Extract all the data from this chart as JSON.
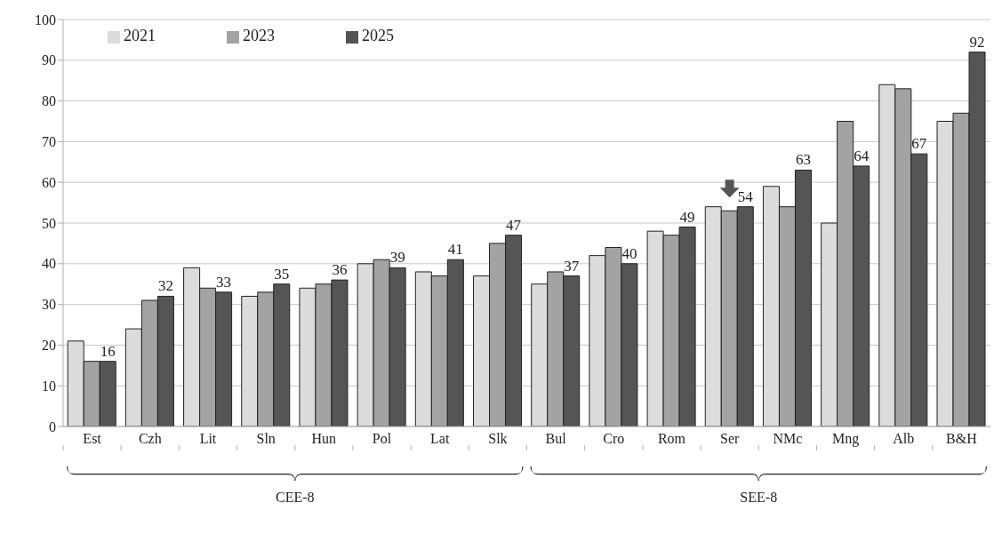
{
  "chart_data": {
    "type": "bar",
    "categories": [
      "Est",
      "Czh",
      "Lit",
      "Sln",
      "Hun",
      "Pol",
      "Lat",
      "Slk",
      "Bul",
      "Cro",
      "Rom",
      "Ser",
      "NMc",
      "Mng",
      "Alb",
      "B&H"
    ],
    "series": [
      {
        "name": "2021",
        "color": "#dcdcde",
        "values": [
          21,
          24,
          39,
          32,
          34,
          40,
          38,
          37,
          35,
          42,
          48,
          54,
          59,
          50,
          84,
          75
        ]
      },
      {
        "name": "2023",
        "color": "#a3a3a5",
        "values": [
          16,
          31,
          34,
          33,
          35,
          41,
          37,
          45,
          38,
          44,
          47,
          53,
          54,
          75,
          83,
          77
        ]
      },
      {
        "name": "2025",
        "color": "#545557",
        "values": [
          16,
          32,
          33,
          35,
          36,
          39,
          41,
          47,
          37,
          40,
          49,
          54,
          63,
          64,
          67,
          92
        ],
        "value_labels": [
          "16",
          "32",
          "33",
          "35",
          "36",
          "39",
          "41",
          "47",
          "37",
          "40",
          "49",
          "54",
          "63",
          "64",
          "67",
          "92"
        ]
      }
    ],
    "ylim": [
      0,
      100
    ],
    "yticks": [
      0,
      10,
      20,
      30,
      40,
      50,
      60,
      70,
      80,
      90,
      100
    ],
    "grid": "y",
    "legend": "top left",
    "annotations": [
      "CEE-8",
      "SEE-8"
    ]
  }
}
